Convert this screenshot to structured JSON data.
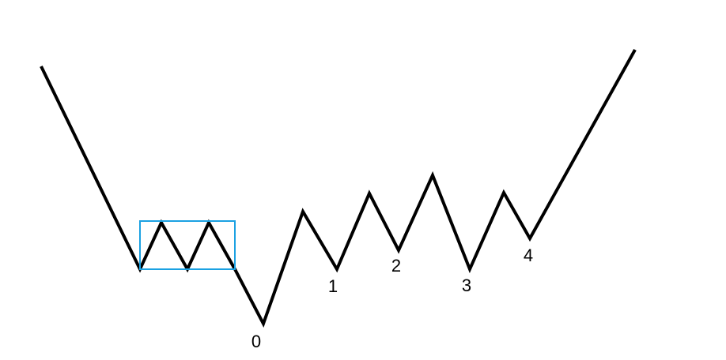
{
  "diagram": {
    "line_color": "#000000",
    "box_color": "#1ba1e2",
    "labels": [
      {
        "id": "point-0",
        "text": "0"
      },
      {
        "id": "point-1",
        "text": "1"
      },
      {
        "id": "point-2",
        "text": "2"
      },
      {
        "id": "point-3",
        "text": "3"
      },
      {
        "id": "point-4",
        "text": "4"
      }
    ]
  }
}
